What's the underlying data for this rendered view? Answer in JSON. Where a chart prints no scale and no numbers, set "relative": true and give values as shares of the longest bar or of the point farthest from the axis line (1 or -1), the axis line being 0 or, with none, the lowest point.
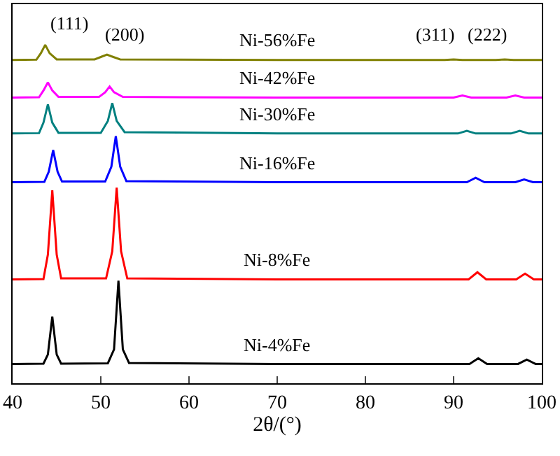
{
  "chart_data": {
    "type": "line",
    "relative": true,
    "xlabel": "2θ/(°)",
    "xlim": [
      40,
      100
    ],
    "xticks": [
      40,
      50,
      60,
      70,
      80,
      90,
      100
    ],
    "tick_labels": "x",
    "legend": false,
    "marker": "none",
    "series": [
      {
        "name": "Ni-4%Fe",
        "color": "#000000",
        "x": [
          40,
          43.5,
          44.0,
          44.5,
          45.0,
          45.5,
          50.8,
          51.5,
          52.0,
          52.5,
          53.2,
          70,
          91.8,
          92.8,
          93.8,
          97.3,
          98.3,
          99.3,
          100
        ],
        "values": [
          0.057,
          0.058,
          0.085,
          0.197,
          0.085,
          0.058,
          0.059,
          0.1,
          0.303,
          0.1,
          0.06,
          0.057,
          0.057,
          0.074,
          0.057,
          0.057,
          0.07,
          0.057,
          0.057
        ]
      },
      {
        "name": "Ni-8%Fe",
        "color": "#ff0000",
        "x": [
          40,
          43.5,
          44.0,
          44.5,
          45.0,
          45.5,
          50.6,
          51.3,
          51.8,
          52.3,
          53.0,
          70,
          91.7,
          92.7,
          93.7,
          97.1,
          98.1,
          99.1,
          100
        ],
        "values": [
          0.307,
          0.308,
          0.38,
          0.57,
          0.38,
          0.31,
          0.31,
          0.39,
          0.578,
          0.39,
          0.31,
          0.307,
          0.307,
          0.328,
          0.307,
          0.307,
          0.324,
          0.307,
          0.307
        ]
      },
      {
        "name": "Ni-16%Fe",
        "color": "#0000ff",
        "x": [
          40,
          43.6,
          44.1,
          44.6,
          45.1,
          45.6,
          50.5,
          51.2,
          51.7,
          52.2,
          52.9,
          70,
          91.5,
          92.5,
          93.5,
          97,
          98,
          99,
          100
        ],
        "values": [
          0.594,
          0.595,
          0.625,
          0.689,
          0.625,
          0.596,
          0.596,
          0.64,
          0.73,
          0.64,
          0.597,
          0.594,
          0.594,
          0.607,
          0.594,
          0.594,
          0.602,
          0.594,
          0.594
        ]
      },
      {
        "name": "Ni-30%Fe",
        "color": "#008080",
        "x": [
          40,
          43.0,
          43.5,
          44.0,
          44.5,
          45.2,
          50.0,
          50.8,
          51.3,
          51.8,
          52.7,
          70,
          90.5,
          91.5,
          92.5,
          96.5,
          97.5,
          98.5,
          100
        ],
        "values": [
          0.738,
          0.739,
          0.77,
          0.824,
          0.77,
          0.74,
          0.74,
          0.775,
          0.828,
          0.775,
          0.742,
          0.738,
          0.738,
          0.746,
          0.738,
          0.738,
          0.746,
          0.738,
          0.738
        ]
      },
      {
        "name": "Ni-42%Fe",
        "color": "#ff00ff",
        "x": [
          40,
          43,
          43.5,
          44.0,
          44.5,
          45.2,
          49.8,
          50.5,
          51.0,
          51.5,
          52.5,
          70,
          90,
          91,
          92,
          96,
          97,
          98,
          100
        ],
        "values": [
          0.844,
          0.845,
          0.865,
          0.889,
          0.865,
          0.846,
          0.846,
          0.86,
          0.877,
          0.86,
          0.846,
          0.844,
          0.844,
          0.85,
          0.844,
          0.844,
          0.85,
          0.844,
          0.844
        ]
      },
      {
        "name": "Ni-56%Fe",
        "color": "#808000",
        "x": [
          40,
          42.7,
          43.2,
          43.7,
          44.2,
          45,
          49.3,
          50.2,
          50.7,
          51.2,
          52.2,
          70,
          89,
          90,
          91,
          94.8,
          95.8,
          96.8,
          100
        ],
        "values": [
          0.955,
          0.956,
          0.975,
          1.0,
          0.975,
          0.957,
          0.957,
          0.966,
          0.971,
          0.966,
          0.957,
          0.955,
          0.955,
          0.957,
          0.955,
          0.955,
          0.957,
          0.955,
          0.955
        ]
      }
    ],
    "annotations": [
      "(111)",
      "(200)",
      "(311)",
      "(222)"
    ]
  }
}
